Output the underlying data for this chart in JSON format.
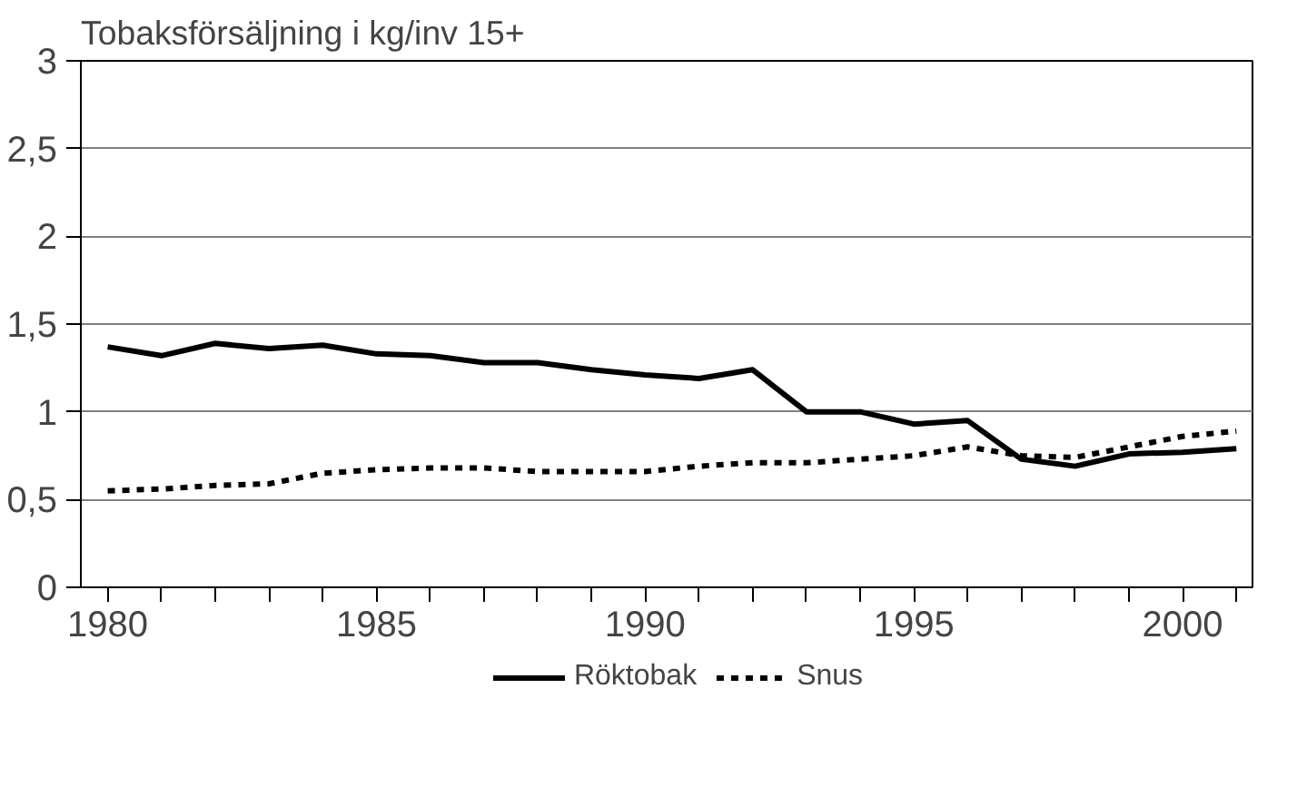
{
  "chart_data": {
    "type": "line",
    "title": "Tobaksförsäljning i kg/inv 15+",
    "x": [
      1980,
      1981,
      1982,
      1983,
      1984,
      1985,
      1986,
      1987,
      1988,
      1989,
      1990,
      1991,
      1992,
      1993,
      1994,
      1995,
      1996,
      1997,
      1998,
      1999,
      2000,
      2001
    ],
    "series": [
      {
        "name": "Röktobak",
        "color": "#000000",
        "line_style": "solid",
        "values": [
          1.37,
          1.32,
          1.39,
          1.36,
          1.38,
          1.33,
          1.32,
          1.28,
          1.28,
          1.24,
          1.21,
          1.19,
          1.24,
          1.0,
          1.0,
          0.93,
          0.95,
          0.73,
          0.69,
          0.76,
          0.77,
          0.79
        ]
      },
      {
        "name": "Snus",
        "color": "#000000",
        "line_style": "dashed",
        "values": [
          0.55,
          0.56,
          0.58,
          0.59,
          0.65,
          0.67,
          0.68,
          0.68,
          0.66,
          0.66,
          0.66,
          0.69,
          0.71,
          0.71,
          0.73,
          0.75,
          0.8,
          0.75,
          0.74,
          0.8,
          0.86,
          0.89
        ]
      }
    ],
    "xlim": [
      1979.5,
      2001.3
    ],
    "xticks": [
      1980,
      {
        "value": 1981,
        "label": null
      },
      {
        "value": 1982,
        "label": null
      },
      {
        "value": 1983,
        "label": null
      },
      {
        "value": 1984,
        "label": null
      },
      1985,
      {
        "value": 1986,
        "label": null
      },
      {
        "value": 1987,
        "label": null
      },
      {
        "value": 1988,
        "label": null
      },
      {
        "value": 1989,
        "label": null
      },
      1990,
      {
        "value": 1991,
        "label": null
      },
      {
        "value": 1992,
        "label": null
      },
      {
        "value": 1993,
        "label": null
      },
      {
        "value": 1994,
        "label": null
      },
      1995,
      {
        "value": 1996,
        "label": null
      },
      {
        "value": 1997,
        "label": null
      },
      {
        "value": 1998,
        "label": null
      },
      {
        "value": 1999,
        "label": null
      },
      2000,
      {
        "value": 2001,
        "label": null
      }
    ],
    "ylim": [
      0,
      3
    ],
    "yticks": [
      0,
      {
        "value": 0.5,
        "label": "0,5"
      },
      1,
      {
        "value": 1.5,
        "label": "1,5"
      },
      2,
      {
        "value": 2.5,
        "label": "2,5"
      },
      3
    ],
    "grid": "y",
    "legend": "bottom",
    "marker": "none"
  }
}
